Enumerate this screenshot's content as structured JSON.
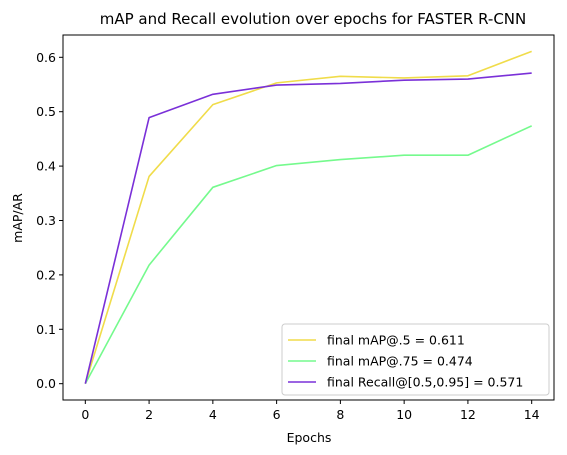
{
  "chart_data": {
    "type": "line",
    "title": "mAP and Recall evolution over epochs for FASTER R-CNN",
    "xlabel": "Epochs",
    "ylabel": "mAP/AR",
    "x": [
      0,
      2,
      4,
      6,
      8,
      10,
      12,
      14
    ],
    "xlim": [
      -0.7,
      14.7
    ],
    "ylim": [
      -0.03,
      0.641
    ],
    "xticks": [
      0,
      2,
      4,
      6,
      8,
      10,
      12,
      14
    ],
    "yticks": [
      0.0,
      0.1,
      0.2,
      0.3,
      0.4,
      0.5,
      0.6
    ],
    "xtick_labels": [
      "0",
      "2",
      "4",
      "6",
      "8",
      "10",
      "12",
      "14"
    ],
    "ytick_labels": [
      "0.0",
      "0.1",
      "0.2",
      "0.3",
      "0.4",
      "0.5",
      "0.6"
    ],
    "grid": false,
    "legend_position": "lower-right",
    "series": [
      {
        "name": "final mAP@.5 = 0.611",
        "color": "#f0dc4a",
        "values": [
          0.0,
          0.381,
          0.513,
          0.553,
          0.565,
          0.562,
          0.566,
          0.611
        ]
      },
      {
        "name": "final mAP@.75 = 0.474",
        "color": "#75fa8d",
        "values": [
          0.0,
          0.218,
          0.361,
          0.401,
          0.412,
          0.42,
          0.42,
          0.474
        ]
      },
      {
        "name": "final Recall@[0.5,0.95] = 0.571",
        "color": "#7a30d8",
        "values": [
          0.0,
          0.489,
          0.532,
          0.549,
          0.552,
          0.558,
          0.56,
          0.571
        ]
      }
    ]
  }
}
